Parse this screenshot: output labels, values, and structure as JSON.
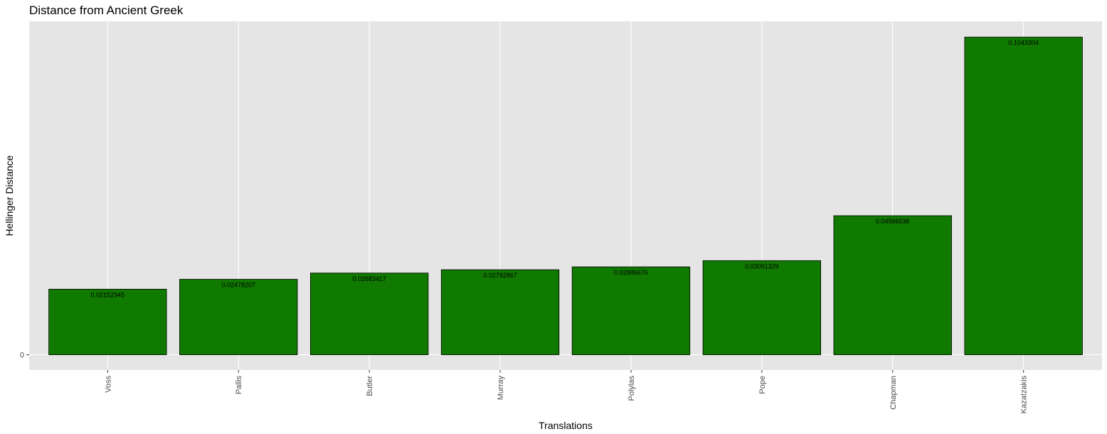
{
  "chart_data": {
    "type": "bar",
    "title": "Distance from Ancient Greek",
    "xlabel": "Translations",
    "ylabel": "Hellinger Distance",
    "categories": [
      "Voss",
      "Pallis",
      "Butler",
      "Murray",
      "Polylas",
      "Pope",
      "Chapman",
      "Kazatzakis"
    ],
    "values": [
      0.02152945,
      0.02478207,
      0.02683417,
      0.02792867,
      0.02886676,
      0.03091329,
      0.04566536,
      0.1043304
    ],
    "data_labels": [
      "0.02152945",
      "0.02478207",
      "0.02683417",
      "0.02792867",
      "0.02886676",
      "0.03091329",
      "0.04566536",
      "0.1043304"
    ],
    "y_ticks": [
      0
    ],
    "y_tick_labels": [
      "0"
    ],
    "ylim": [
      -0.005,
      0.1095
    ],
    "grid": true,
    "bar_fill": "#107a00",
    "bar_border": "#000000",
    "panel_background": "#e5e5e5",
    "grid_color": "#ffffff"
  }
}
